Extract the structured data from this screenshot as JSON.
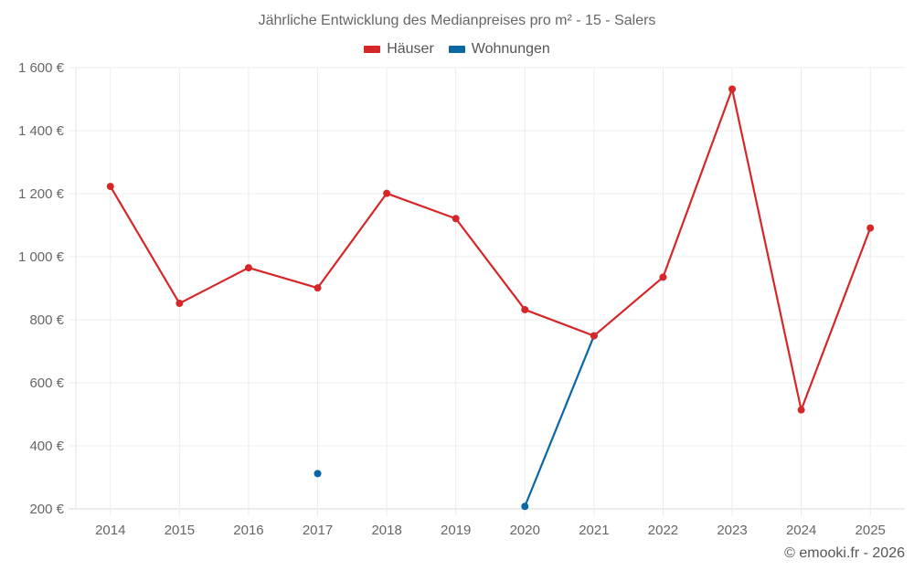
{
  "title": "Jährliche Entwicklung des Medianpreises pro m² - 15 - Salers",
  "footer": "© emooki.fr - 2026",
  "legend": [
    {
      "label": "Häuser",
      "color": "#d62728"
    },
    {
      "label": "Wohnungen",
      "color": "#0b66a4"
    }
  ],
  "chart_data": {
    "type": "line",
    "title": "Jährliche Entwicklung des Medianpreises pro m² - 15 - Salers",
    "xlabel": "",
    "ylabel": "",
    "categories": [
      "2014",
      "2015",
      "2016",
      "2017",
      "2018",
      "2019",
      "2020",
      "2021",
      "2022",
      "2023",
      "2024",
      "2025"
    ],
    "y_ticks": [
      200,
      400,
      600,
      800,
      1000,
      1200,
      1400,
      1600
    ],
    "y_tick_labels": [
      "200 €",
      "400 €",
      "600 €",
      "800 €",
      "1 000 €",
      "1 200 €",
      "1 400 €",
      "1 600 €"
    ],
    "ylim": [
      200,
      1600
    ],
    "grid": true,
    "legend_position": "top",
    "series": [
      {
        "name": "Häuser",
        "color": "#d62728",
        "values": [
          1223,
          852,
          965,
          901,
          1201,
          1121,
          832,
          749,
          935,
          1532,
          514,
          1091
        ]
      },
      {
        "name": "Wohnungen",
        "color": "#0b66a4",
        "values": [
          null,
          null,
          null,
          312,
          null,
          null,
          208,
          749,
          null,
          null,
          null,
          null
        ]
      }
    ]
  }
}
